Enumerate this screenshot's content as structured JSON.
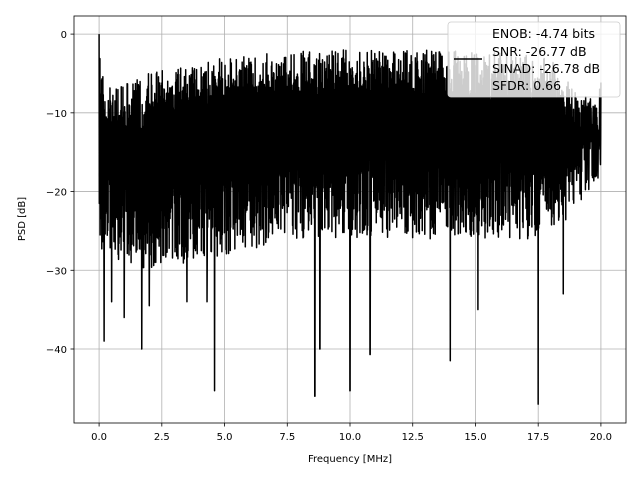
{
  "chart_data": {
    "type": "line",
    "title": "",
    "xlabel": "Frequency [MHz]",
    "ylabel": "PSD [dB]",
    "xlim": [
      -1.0,
      21.0
    ],
    "ylim": [
      -49.4,
      2.3
    ],
    "xticks": [
      0.0,
      2.5,
      5.0,
      7.5,
      10.0,
      12.5,
      15.0,
      17.5,
      20.0
    ],
    "xtick_labels": [
      "0.0",
      "2.5",
      "5.0",
      "7.5",
      "10.0",
      "12.5",
      "15.0",
      "17.5",
      "20.0"
    ],
    "yticks": [
      0,
      -10,
      -20,
      -30,
      -40
    ],
    "ytick_labels": [
      "0",
      "−10",
      "−20",
      "−30",
      "−40"
    ],
    "grid": true,
    "legend": {
      "placement": "top-right",
      "entries": [
        "ENOB: -4.74 bits",
        "SNR: -26.77 dB",
        "SINAD: -26.78 dB",
        "SFDR: 0.66"
      ]
    },
    "series": [
      {
        "name": "PSD",
        "color": "#000000",
        "description": "dense noisy spectrum, 0-20 MHz",
        "x_range": [
          0,
          20
        ],
        "num_points": 2400,
        "seed": 7,
        "upper_envelope": {
          "x": [
            0,
            0.05,
            0.3,
            2,
            5,
            8,
            10,
            12,
            15,
            18,
            20
          ],
          "y": [
            0,
            -4,
            -7,
            -5,
            -3,
            -2,
            -2,
            -2,
            -2,
            -3,
            -10
          ]
        },
        "lower_envelope": {
          "x": [
            0,
            2,
            5,
            8,
            10,
            12,
            15,
            18,
            20
          ],
          "y": [
            -28,
            -30,
            -28,
            -26,
            -26,
            -26,
            -26,
            -26,
            -18
          ]
        },
        "dips": {
          "x": [
            0.2,
            0.5,
            1.0,
            1.7,
            2.0,
            3.5,
            4.3,
            4.6,
            8.6,
            8.8,
            10.0,
            10.8,
            14.0,
            15.1,
            17.5,
            18.5
          ],
          "y": [
            -39,
            -34,
            -36,
            -40,
            -34.5,
            -34,
            -34,
            -45.3,
            -46,
            -40,
            -45.3,
            -40.7,
            -41.5,
            -35,
            -47,
            -33
          ]
        }
      }
    ]
  }
}
